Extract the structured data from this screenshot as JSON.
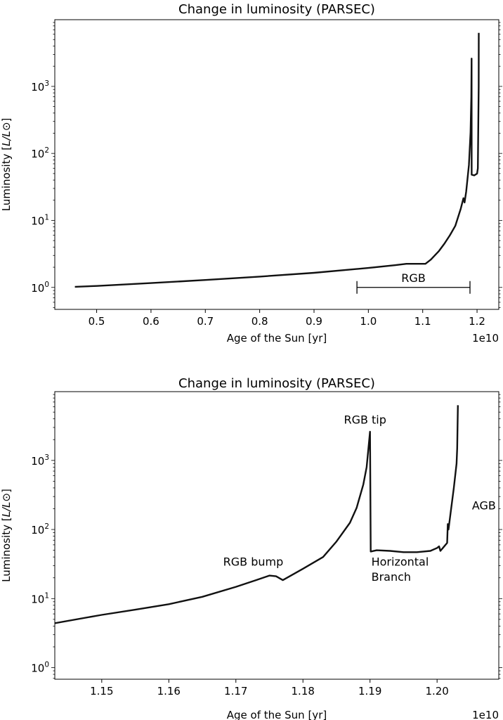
{
  "chart_data": [
    {
      "type": "line",
      "title": "Change in luminosity (PARSEC)",
      "xlabel": "Age of the Sun [yr]",
      "ylabel_prefix": "Luminosity [",
      "ylabel_math": "L/L",
      "ylabel_suffix": "]",
      "x_offset_label": "1e10",
      "x_scale": "linear",
      "y_scale": "log",
      "xlim": [
        0.423,
        1.24
      ],
      "ylim": [
        0.47,
        9900
      ],
      "xticks": [
        "0.5",
        "0.6",
        "0.7",
        "0.8",
        "0.9",
        "1.0",
        "1.1",
        "1.2"
      ],
      "yticks": [
        {
          "value": 1,
          "label_base": "10",
          "label_exp": "0"
        },
        {
          "value": 10,
          "label_base": "10",
          "label_exp": "1"
        },
        {
          "value": 100,
          "label_base": "10",
          "label_exp": "2"
        },
        {
          "value": 1000,
          "label_base": "10",
          "label_exp": "3"
        }
      ],
      "grid": false,
      "line_color": "#111111",
      "series": [
        {
          "x": [
            0.46,
            0.5,
            0.6,
            0.7,
            0.8,
            0.9,
            1.0,
            1.05,
            1.07,
            1.09,
            1.105,
            1.115,
            1.13,
            1.14,
            1.15,
            1.16,
            1.17,
            1.175,
            1.177,
            1.18,
            1.185,
            1.188,
            1.1895,
            1.19,
            1.1901,
            1.195,
            1.2,
            1.2015,
            1.2025,
            1.203,
            1.2031
          ],
          "y": [
            1.02,
            1.05,
            1.16,
            1.29,
            1.45,
            1.65,
            1.95,
            2.15,
            2.25,
            2.25,
            2.25,
            2.6,
            3.5,
            4.5,
            6,
            8.3,
            15,
            21.5,
            18.5,
            27,
            67,
            205,
            700,
            2600,
            48,
            47,
            50,
            60,
            400,
            1000,
            6300
          ]
        }
      ],
      "annotations": [
        {
          "type": "range-bar",
          "x0": 0.979,
          "x1": 1.187,
          "y": 1.0,
          "text": "RGB",
          "text_x": 1.083,
          "text_y": 1.2
        }
      ]
    },
    {
      "type": "line",
      "title": "Change in luminosity (PARSEC)",
      "xlabel": "Age of the Sun [yr]",
      "ylabel_prefix": "Luminosity [",
      "ylabel_math": "L/L",
      "ylabel_suffix": "]",
      "x_offset_label": "1e10",
      "x_scale": "linear",
      "y_scale": "log",
      "xlim": [
        1.143,
        1.2092
      ],
      "ylim": [
        0.68,
        9900
      ],
      "xticks": [
        "1.15",
        "1.16",
        "1.17",
        "1.18",
        "1.19",
        "1.20"
      ],
      "yticks": [
        {
          "value": 1,
          "label_base": "10",
          "label_exp": "0"
        },
        {
          "value": 10,
          "label_base": "10",
          "label_exp": "1"
        },
        {
          "value": 100,
          "label_base": "10",
          "label_exp": "2"
        },
        {
          "value": 1000,
          "label_base": "10",
          "label_exp": "3"
        }
      ],
      "grid": false,
      "line_color": "#111111",
      "series": [
        {
          "x": [
            1.143,
            1.15,
            1.155,
            1.16,
            1.165,
            1.17,
            1.173,
            1.175,
            1.176,
            1.177,
            1.18,
            1.183,
            1.185,
            1.187,
            1.188,
            1.189,
            1.1895,
            1.19,
            1.1901,
            1.191,
            1.193,
            1.195,
            1.197,
            1.199,
            1.2,
            1.2003,
            1.2005,
            1.201,
            1.2015,
            1.2016,
            1.2017,
            1.202,
            1.2025,
            1.2029,
            1.203,
            1.2031
          ],
          "y": [
            4.4,
            5.8,
            6.9,
            8.3,
            10.6,
            14.8,
            18.5,
            21.5,
            21,
            18.5,
            27,
            40,
            67,
            125,
            205,
            450,
            800,
            2600,
            48,
            50,
            49,
            47,
            47,
            49,
            54,
            57,
            49,
            56,
            64,
            120,
            100,
            170,
            400,
            900,
            1500,
            6300
          ]
        }
      ],
      "annotations": [
        {
          "text": "RGB bump",
          "x": 1.1681,
          "y": 30
        },
        {
          "text": "RGB tip",
          "x": 1.1861,
          "y": 3400
        },
        {
          "text": "Horizontal",
          "x": 1.1902,
          "y": 30
        },
        {
          "text": "Branch",
          "x": 1.1902,
          "y": 18
        },
        {
          "text": "AGB",
          "x": 1.2052,
          "y": 195
        }
      ]
    }
  ]
}
